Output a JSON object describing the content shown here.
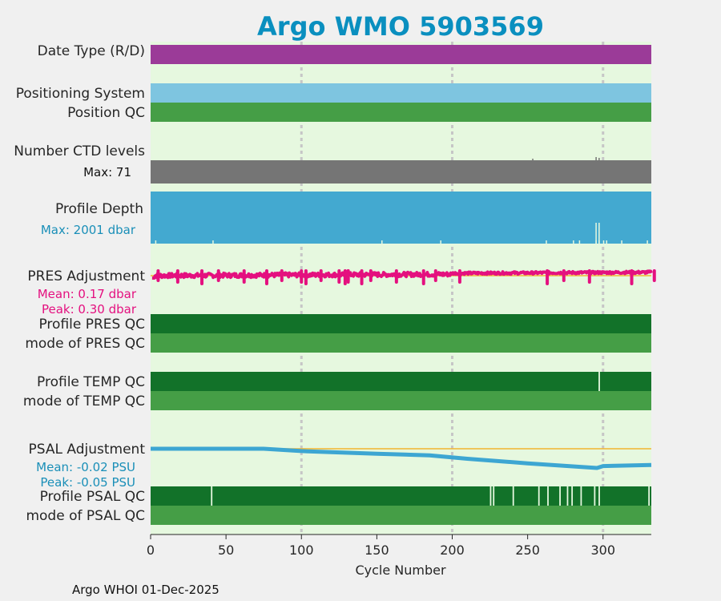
{
  "chart_data": {
    "type": "timeline",
    "title": "Argo WMO 5903569",
    "xlabel": "Cycle Number",
    "xlim": [
      0,
      332
    ],
    "xticks": [
      0,
      50,
      100,
      150,
      200,
      250,
      300
    ],
    "footer": "Argo WHOI 01-Dec-2025",
    "colors": {
      "title": "#0a8fbf",
      "background": "#e6f8df",
      "date_type": "#9b3b98",
      "positioning": "#7ec5e0",
      "qc_good": "#127229",
      "qc_mode": "#459e46",
      "ctd": "#757575",
      "depth": "#43a9d0",
      "pres": "#e4107f",
      "psal": "#3da6d2",
      "zero_line": "#f2b531",
      "grid": "#c6c6c6"
    },
    "rows": {
      "date_type": "Date Type (R/D)",
      "positioning": "Positioning System",
      "position_qc": "Position QC",
      "ctd_levels": "Number CTD levels",
      "ctd_max": "Max: 71",
      "profile_depth": "Profile Depth",
      "depth_max": "Max: 2001 dbar",
      "pres_adj": "PRES Adjustment",
      "pres_mean": "Mean: 0.17 dbar",
      "pres_peak": "Peak: 0.30 dbar",
      "pres_qc": "Profile PRES QC",
      "pres_mode": "mode of PRES QC",
      "temp_qc": "Profile TEMP QC",
      "temp_mode": "mode of TEMP QC",
      "psal_adj": "PSAL Adjustment",
      "psal_mean": "Mean: -0.02 PSU",
      "psal_peak": "Peak: -0.05 PSU",
      "psal_qc": "Profile PSAL QC",
      "psal_mode": "mode of PSAL QC"
    },
    "temp_qc_gaps": [
      297
    ],
    "psal_qc_gaps": [
      40,
      225,
      227,
      240,
      257,
      263,
      271,
      276,
      279,
      285,
      294,
      297,
      330
    ],
    "psal_adjustment": {
      "cycles": [
        0,
        75,
        100,
        150,
        185,
        210,
        250,
        296,
        300,
        332
      ],
      "values": [
        -0.0,
        -0.0,
        -0.006,
        -0.013,
        -0.017,
        -0.026,
        -0.038,
        -0.05,
        -0.045,
        -0.042
      ]
    },
    "pres_adjustment": {
      "mean": 0.17,
      "peak": 0.3,
      "spike_cycles": [
        5,
        18,
        34,
        45,
        62,
        77,
        87,
        100,
        103,
        113,
        125,
        129,
        131,
        131,
        140,
        146,
        163,
        181,
        189,
        205,
        263,
        274,
        291,
        319,
        334
      ]
    }
  }
}
